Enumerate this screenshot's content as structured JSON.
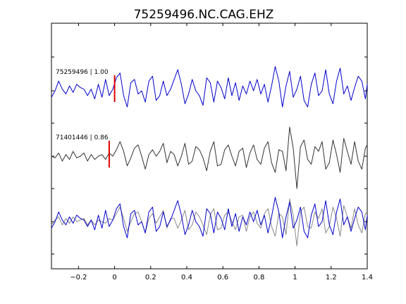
{
  "chart_data": {
    "type": "line",
    "title": "75259496.NC.CAG.EHZ",
    "xlabel": "",
    "ylabel": "",
    "xlim": [
      -0.35,
      1.4
    ],
    "xticks": [
      -0.2,
      0,
      0.2,
      0.4,
      0.6,
      0.8,
      1,
      1.2,
      1.4
    ],
    "xtick_labels": [
      "−0.2",
      "0",
      "0.2",
      "0.4",
      "0.6",
      "0.8",
      "1",
      "1.2",
      "1.4"
    ],
    "grid": false,
    "colors": {
      "blue": "#0000cc",
      "black": "#333333",
      "gray": "#888888",
      "pick": "#dd0000"
    },
    "traces": [
      {
        "label": "75259496 | 1.00",
        "pick_time": 0.0,
        "color": "blue",
        "x": [
          -0.35,
          -0.33,
          -0.31,
          -0.29,
          -0.27,
          -0.25,
          -0.23,
          -0.21,
          -0.19,
          -0.17,
          -0.15,
          -0.13,
          -0.11,
          -0.09,
          -0.07,
          -0.05,
          -0.03,
          -0.01,
          0.01,
          0.03,
          0.05,
          0.07,
          0.09,
          0.11,
          0.13,
          0.15,
          0.17,
          0.19,
          0.21,
          0.23,
          0.25,
          0.27,
          0.29,
          0.31,
          0.33,
          0.35,
          0.37,
          0.39,
          0.41,
          0.43,
          0.45,
          0.47,
          0.49,
          0.51,
          0.53,
          0.55,
          0.57,
          0.59,
          0.61,
          0.63,
          0.65,
          0.67,
          0.69,
          0.71,
          0.73,
          0.75,
          0.77,
          0.79,
          0.81,
          0.83,
          0.85,
          0.87,
          0.89,
          0.91,
          0.93,
          0.95,
          0.97,
          0.99,
          1.01,
          1.03,
          1.05,
          1.07,
          1.09,
          1.11,
          1.13,
          1.15,
          1.17,
          1.19,
          1.21,
          1.23,
          1.25,
          1.27,
          1.29,
          1.31,
          1.33,
          1.35,
          1.37,
          1.39,
          1.4
        ],
        "y": [
          -0.4,
          0.0,
          0.6,
          0.1,
          -0.2,
          0.3,
          -0.1,
          0.4,
          0.2,
          0.1,
          -0.3,
          0.1,
          -0.5,
          0.4,
          -0.4,
          0.7,
          -0.3,
          0.1,
          0.8,
          1.1,
          -0.3,
          -1.0,
          0.5,
          0.7,
          -0.2,
          0.0,
          -0.7,
          0.6,
          0.9,
          -0.6,
          -0.3,
          0.6,
          -0.3,
          0.1,
          0.7,
          1.3,
          0.4,
          -0.8,
          -0.2,
          0.7,
          0.0,
          -0.3,
          -0.9,
          0.8,
          0.5,
          -0.7,
          0.6,
          0.2,
          -0.5,
          0.8,
          -0.3,
          0.5,
          -0.6,
          0.3,
          -0.2,
          0.6,
          0.0,
          0.7,
          -0.2,
          0.4,
          -0.7,
          0.3,
          1.5,
          0.6,
          -1.0,
          0.3,
          1.2,
          -0.4,
          0.1,
          0.9,
          -0.6,
          -1.0,
          0.4,
          1.1,
          -0.3,
          0.0,
          1.3,
          -0.2,
          -0.8,
          0.6,
          1.4,
          -0.2,
          0.3,
          -0.6,
          0.2,
          0.9,
          0.6,
          -0.5,
          0.4
        ]
      },
      {
        "label": "71401446 | 0.86",
        "pick_time": -0.03,
        "color": "black",
        "x": [
          -0.35,
          -0.33,
          -0.31,
          -0.29,
          -0.27,
          -0.25,
          -0.23,
          -0.21,
          -0.19,
          -0.17,
          -0.15,
          -0.13,
          -0.11,
          -0.09,
          -0.07,
          -0.05,
          -0.03,
          -0.01,
          0.01,
          0.03,
          0.05,
          0.07,
          0.09,
          0.11,
          0.13,
          0.15,
          0.17,
          0.19,
          0.21,
          0.23,
          0.25,
          0.27,
          0.29,
          0.31,
          0.33,
          0.35,
          0.37,
          0.39,
          0.41,
          0.43,
          0.45,
          0.47,
          0.49,
          0.51,
          0.53,
          0.55,
          0.57,
          0.59,
          0.61,
          0.63,
          0.65,
          0.67,
          0.69,
          0.71,
          0.73,
          0.75,
          0.77,
          0.79,
          0.81,
          0.83,
          0.85,
          0.87,
          0.89,
          0.91,
          0.93,
          0.95,
          0.97,
          0.99,
          1.01,
          1.03,
          1.05,
          1.07,
          1.09,
          1.11,
          1.13,
          1.15,
          1.17,
          1.19,
          1.21,
          1.23,
          1.25,
          1.27,
          1.29,
          1.31,
          1.33,
          1.35,
          1.37,
          1.39,
          1.4
        ],
        "y": [
          0.0,
          -0.1,
          0.2,
          -0.3,
          0.1,
          -0.2,
          0.3,
          -0.1,
          0.0,
          0.2,
          -0.3,
          0.1,
          -0.2,
          0.0,
          0.1,
          -0.2,
          0.2,
          0.0,
          0.4,
          0.9,
          0.3,
          -0.6,
          -0.1,
          0.5,
          0.7,
          0.0,
          -0.8,
          0.1,
          0.4,
          0.0,
          0.3,
          0.8,
          -0.4,
          0.3,
          0.1,
          -0.6,
          0.0,
          0.8,
          -0.5,
          -0.3,
          0.6,
          0.4,
          -0.1,
          -0.9,
          0.3,
          0.9,
          -0.6,
          -0.5,
          0.4,
          0.7,
          0.0,
          -0.6,
          0.3,
          0.5,
          -0.7,
          0.2,
          0.7,
          -0.2,
          -0.5,
          0.5,
          0.9,
          -0.4,
          -1.0,
          0.4,
          0.3,
          -0.9,
          1.8,
          0.5,
          -2.0,
          0.6,
          1.0,
          -0.2,
          -0.5,
          0.6,
          0.3,
          0.9,
          -0.8,
          -0.4,
          1.0,
          0.1,
          -1.0,
          1.1,
          0.3,
          -0.5,
          0.9,
          -0.3,
          -0.8,
          0.5,
          0.7
        ]
      },
      {
        "label": "",
        "overlay": true,
        "color": "blue",
        "x": [
          -0.35,
          -0.33,
          -0.31,
          -0.29,
          -0.27,
          -0.25,
          -0.23,
          -0.21,
          -0.19,
          -0.17,
          -0.15,
          -0.13,
          -0.11,
          -0.09,
          -0.07,
          -0.05,
          -0.03,
          -0.01,
          0.01,
          0.03,
          0.05,
          0.07,
          0.09,
          0.11,
          0.13,
          0.15,
          0.17,
          0.19,
          0.21,
          0.23,
          0.25,
          0.27,
          0.29,
          0.31,
          0.33,
          0.35,
          0.37,
          0.39,
          0.41,
          0.43,
          0.45,
          0.47,
          0.49,
          0.51,
          0.53,
          0.55,
          0.57,
          0.59,
          0.61,
          0.63,
          0.65,
          0.67,
          0.69,
          0.71,
          0.73,
          0.75,
          0.77,
          0.79,
          0.81,
          0.83,
          0.85,
          0.87,
          0.89,
          0.91,
          0.93,
          0.95,
          0.97,
          0.99,
          1.01,
          1.03,
          1.05,
          1.07,
          1.09,
          1.11,
          1.13,
          1.15,
          1.17,
          1.19,
          1.21,
          1.23,
          1.25,
          1.27,
          1.29,
          1.31,
          1.33,
          1.35,
          1.37,
          1.39,
          1.4
        ],
        "y": [
          -0.4,
          0.0,
          0.6,
          0.1,
          -0.2,
          0.3,
          -0.1,
          0.4,
          0.2,
          0.1,
          -0.3,
          0.1,
          -0.5,
          0.4,
          -0.4,
          0.7,
          -0.3,
          0.1,
          0.8,
          1.1,
          -0.3,
          -1.0,
          0.5,
          0.7,
          -0.2,
          0.0,
          -0.7,
          0.6,
          0.9,
          -0.6,
          -0.3,
          0.6,
          -0.3,
          0.1,
          0.7,
          1.3,
          0.4,
          -0.8,
          -0.2,
          0.7,
          0.0,
          -0.3,
          -0.9,
          0.8,
          0.5,
          -0.7,
          0.6,
          0.2,
          -0.5,
          0.8,
          -0.3,
          0.5,
          -0.6,
          0.3,
          -0.2,
          0.6,
          0.0,
          0.7,
          -0.2,
          0.4,
          -0.7,
          0.3,
          1.5,
          0.6,
          -1.0,
          0.3,
          1.2,
          -0.4,
          0.1,
          0.9,
          -0.6,
          -1.0,
          0.4,
          1.1,
          -0.3,
          0.0,
          1.3,
          -0.2,
          -0.8,
          0.6,
          1.4,
          -0.2,
          0.3,
          -0.6,
          0.2,
          0.9,
          0.6,
          -0.5,
          0.4
        ]
      },
      {
        "label": "",
        "overlay": true,
        "color": "gray",
        "x": [
          -0.35,
          -0.33,
          -0.31,
          -0.29,
          -0.27,
          -0.25,
          -0.23,
          -0.21,
          -0.19,
          -0.17,
          -0.15,
          -0.13,
          -0.11,
          -0.09,
          -0.07,
          -0.05,
          -0.03,
          -0.01,
          0.01,
          0.03,
          0.05,
          0.07,
          0.09,
          0.11,
          0.13,
          0.15,
          0.17,
          0.19,
          0.21,
          0.23,
          0.25,
          0.27,
          0.29,
          0.31,
          0.33,
          0.35,
          0.37,
          0.39,
          0.41,
          0.43,
          0.45,
          0.47,
          0.49,
          0.51,
          0.53,
          0.55,
          0.57,
          0.59,
          0.61,
          0.63,
          0.65,
          0.67,
          0.69,
          0.71,
          0.73,
          0.75,
          0.77,
          0.79,
          0.81,
          0.83,
          0.85,
          0.87,
          0.89,
          0.91,
          0.93,
          0.95,
          0.97,
          0.99,
          1.01,
          1.03,
          1.05,
          1.07,
          1.09,
          1.11,
          1.13,
          1.15,
          1.17,
          1.19,
          1.21,
          1.23,
          1.25,
          1.27,
          1.29,
          1.31,
          1.33,
          1.35,
          1.37,
          1.39,
          1.4
        ],
        "y": [
          -0.2,
          0.1,
          0.3,
          -0.2,
          0.2,
          -0.1,
          0.3,
          0.0,
          0.1,
          0.2,
          -0.2,
          0.1,
          -0.2,
          0.1,
          0.0,
          -0.1,
          0.2,
          0.1,
          0.5,
          0.9,
          0.2,
          -0.6,
          0.0,
          0.5,
          0.6,
          0.0,
          -0.7,
          0.2,
          0.5,
          -0.1,
          0.3,
          0.7,
          -0.4,
          0.2,
          0.2,
          -0.4,
          0.1,
          0.7,
          -0.5,
          -0.2,
          0.6,
          0.3,
          -0.2,
          -0.8,
          0.4,
          0.8,
          -0.5,
          -0.4,
          0.4,
          0.6,
          0.0,
          -0.5,
          0.3,
          0.4,
          -0.6,
          0.3,
          0.6,
          -0.1,
          -0.4,
          0.5,
          0.8,
          -0.3,
          -0.9,
          0.5,
          0.3,
          -0.8,
          1.4,
          0.4,
          -1.5,
          0.6,
          0.9,
          -0.3,
          -0.4,
          0.6,
          0.2,
          0.8,
          -0.7,
          -0.3,
          0.9,
          0.2,
          -0.9,
          1.0,
          0.3,
          -0.4,
          0.8,
          -0.2,
          -0.7,
          0.5,
          0.6
        ]
      }
    ]
  }
}
